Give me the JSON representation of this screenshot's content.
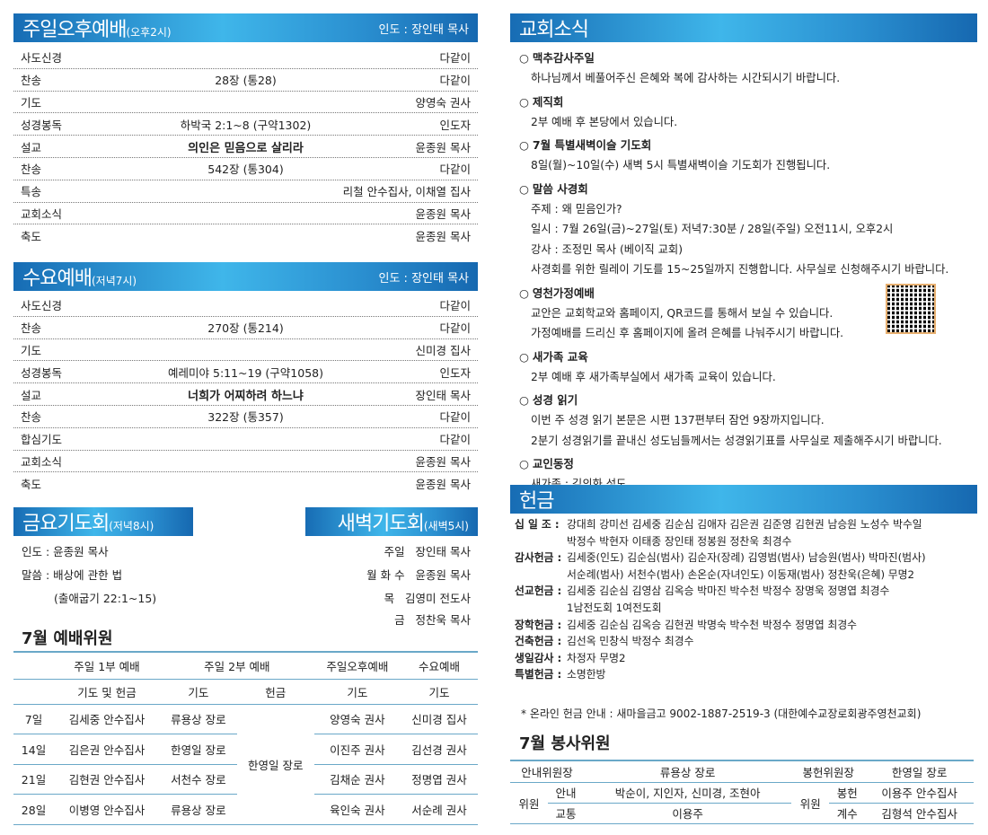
{
  "sunday_pm": {
    "title": "주일오후예배",
    "time": "(오후2시)",
    "leader": "인도 : 장인태 목사",
    "rows": [
      [
        "사도신경",
        "",
        "다같이"
      ],
      [
        "찬송",
        "28장 (통28)",
        "다같이"
      ],
      [
        "기도",
        "",
        "양영숙 권사"
      ],
      [
        "성경봉독",
        "하박국 2:1~8 (구약1302)",
        "인도자"
      ],
      [
        "설교",
        "의인은 믿음으로 살리라",
        "윤종원 목사"
      ],
      [
        "찬송",
        "542장 (통304)",
        "다같이"
      ],
      [
        "특송",
        "",
        "리철 안수집사, 이채열 집사"
      ],
      [
        "교회소식",
        "",
        "윤종원 목사"
      ],
      [
        "축도",
        "",
        "윤종원 목사"
      ]
    ],
    "sermon_index": 4
  },
  "wednesday": {
    "title": "수요예배",
    "time": "(저녁7시)",
    "leader": "인도 : 장인태 목사",
    "rows": [
      [
        "사도신경",
        "",
        "다같이"
      ],
      [
        "찬송",
        "270장 (통214)",
        "다같이"
      ],
      [
        "기도",
        "",
        "신미경 집사"
      ],
      [
        "성경봉독",
        "예레미야 5:11~19 (구약1058)",
        "인도자"
      ],
      [
        "설교",
        "너희가 어찌하려 하느냐",
        "장인태 목사"
      ],
      [
        "찬송",
        "322장 (통357)",
        "다같이"
      ],
      [
        "합심기도",
        "",
        "다같이"
      ],
      [
        "교회소식",
        "",
        "윤종원 목사"
      ],
      [
        "축도",
        "",
        "윤종원 목사"
      ]
    ],
    "sermon_index": 4
  },
  "friday": {
    "title": "금요기도회",
    "time": "(저녁8시)",
    "lines": [
      "인도 : 윤종원 목사",
      "말씀 : 배상에 관한 법",
      "(출애굽기 22:1~15)"
    ]
  },
  "dawn": {
    "title": "새벽기도회",
    "time": "(새벽5시)",
    "lines": [
      "주일   장인태 목사",
      "월 화 수   윤종원 목사",
      "목   김영미 전도사",
      "금   정찬욱 목사"
    ]
  },
  "worship_staff": {
    "title": "7월 예배위원",
    "header1": [
      "",
      "주일 1부 예배",
      "주일 2부 예배",
      "주일오후예배",
      "수요예배"
    ],
    "header2": [
      "",
      "기도 및 헌금",
      "기도",
      "헌금",
      "기도",
      "기도"
    ],
    "offering_shared": "한영일 장로",
    "rows": [
      [
        "7일",
        "김세중 안수집사",
        "류용상 장로",
        "양영숙 권사",
        "신미경 집사"
      ],
      [
        "14일",
        "김은권 안수집사",
        "한영일 장로",
        "이진주 권사",
        "김선경 권사"
      ],
      [
        "21일",
        "김현권 안수집사",
        "서천수 장로",
        "김채순 권사",
        "정명엽 권사"
      ],
      [
        "28일",
        "이병영 안수집사",
        "류용상 장로",
        "육인숙 권사",
        "서순례 권사"
      ]
    ]
  },
  "news": {
    "title": "교회소식",
    "items": [
      {
        "title": "맥추감사주일",
        "lines": [
          "하나님께서 베풀어주신 은혜와 복에 감사하는 시간되시기 바랍니다."
        ]
      },
      {
        "title": "제직회",
        "lines": [
          "2부 예배 후 본당에서 있습니다."
        ]
      },
      {
        "title": "7월 특별새벽이슬 기도회",
        "lines": [
          "8일(월)~10일(수) 새벽 5시 특별새벽이슬 기도회가 진행됩니다."
        ]
      },
      {
        "title": "말씀 사경회",
        "lines": [
          "주제 : 왜 믿음인가?",
          "일시 : 7월 26일(금)~27일(토) 저녁7:30분 / 28일(주일) 오전11시, 오후2시",
          "강사 : 조정민 목사 (베이직 교회)",
          "사경회를 위한 릴레이 기도를 15~25일까지 진행합니다. 사무실로 신청해주시기 바랍니다."
        ]
      },
      {
        "title": "영천가정예배",
        "lines": [
          "교안은 교회학교와 홈페이지, QR코드를 통해서 보실 수 있습니다.",
          "가정예배를 드리신 후 홈페이지에 올려 은혜를 나눠주시기 바랍니다."
        ]
      },
      {
        "title": "새가족 교육",
        "lines": [
          "2부 예배 후 새가족부실에서 새가족 교육이 있습니다."
        ]
      },
      {
        "title": "성경 읽기",
        "lines": [
          "이번 주 성경 읽기 본문은 시편 137편부터 잠언 9장까지입니다.",
          "2분기 성경읽기를 끝내신 성도님들께서는 성경읽기표를 사무실로 제출해주시기 바랍니다."
        ]
      },
      {
        "title": "교인동정",
        "lines": [
          "새가족 : 김의화 성도"
        ]
      }
    ],
    "qr_icon": "qr-code"
  },
  "offering": {
    "title": "헌금",
    "groups": [
      {
        "label": "십 일 조 :",
        "lines": [
          "강대희 강미선 김세중 김순심 김애자 김은권 김준영 김현권 남승원 노성수 박수일",
          "박정수 박현자 이태종 장인태 정봉원 정찬욱 최경수"
        ]
      },
      {
        "label": "감사헌금 :",
        "lines": [
          "김세중(인도) 김순심(범사) 김순자(장례) 김영범(범사) 남승원(범사) 박마진(범사)",
          "서순례(범사) 서천수(범사) 손온순(자녀인도) 이동재(범사) 정찬욱(은혜) 무명2"
        ]
      },
      {
        "label": "선교헌금 :",
        "lines": [
          "김세중 김순심 김영삼 김옥승 박마진 박수천 박정수 장명욱 정명엽 최경수",
          "1남전도회 1여전도회"
        ]
      },
      {
        "label": "장학헌금 :",
        "lines": [
          "김세중 김순심 김옥승 김현권 박명숙 박수천 박정수 정명엽 최경수"
        ]
      },
      {
        "label": "건축헌금 :",
        "lines": [
          "김선옥 민창식 박정수 최경수"
        ]
      },
      {
        "label": "생일감사 :",
        "lines": [
          "차정자 무명2"
        ]
      },
      {
        "label": "특별헌금 :",
        "lines": [
          "소명한방"
        ]
      }
    ],
    "online_note": "* 온라인 헌금 안내 : 새마을금고 9002-1887-2519-3 (대한예수교장로회광주영천교회)"
  },
  "service_staff": {
    "title": "7월 봉사위원",
    "guide_head_label": "안내위원장",
    "guide_head": "류용상 장로",
    "offering_head_label": "봉헌위원장",
    "offering_head": "한영일 장로",
    "member_label": "위원",
    "guide_label": "안내",
    "guide": "박순이, 지인자, 신미경, 조현아",
    "traffic_label": "교통",
    "traffic": "이용주",
    "offer_label": "봉헌",
    "offer": "이용주 안수집사",
    "count_label": "계수",
    "count": "김형석 안수집사"
  },
  "colors": {
    "header_dark": "#176cb4",
    "header_light": "#3fb6ea",
    "table_line": "#6aa8c8"
  }
}
